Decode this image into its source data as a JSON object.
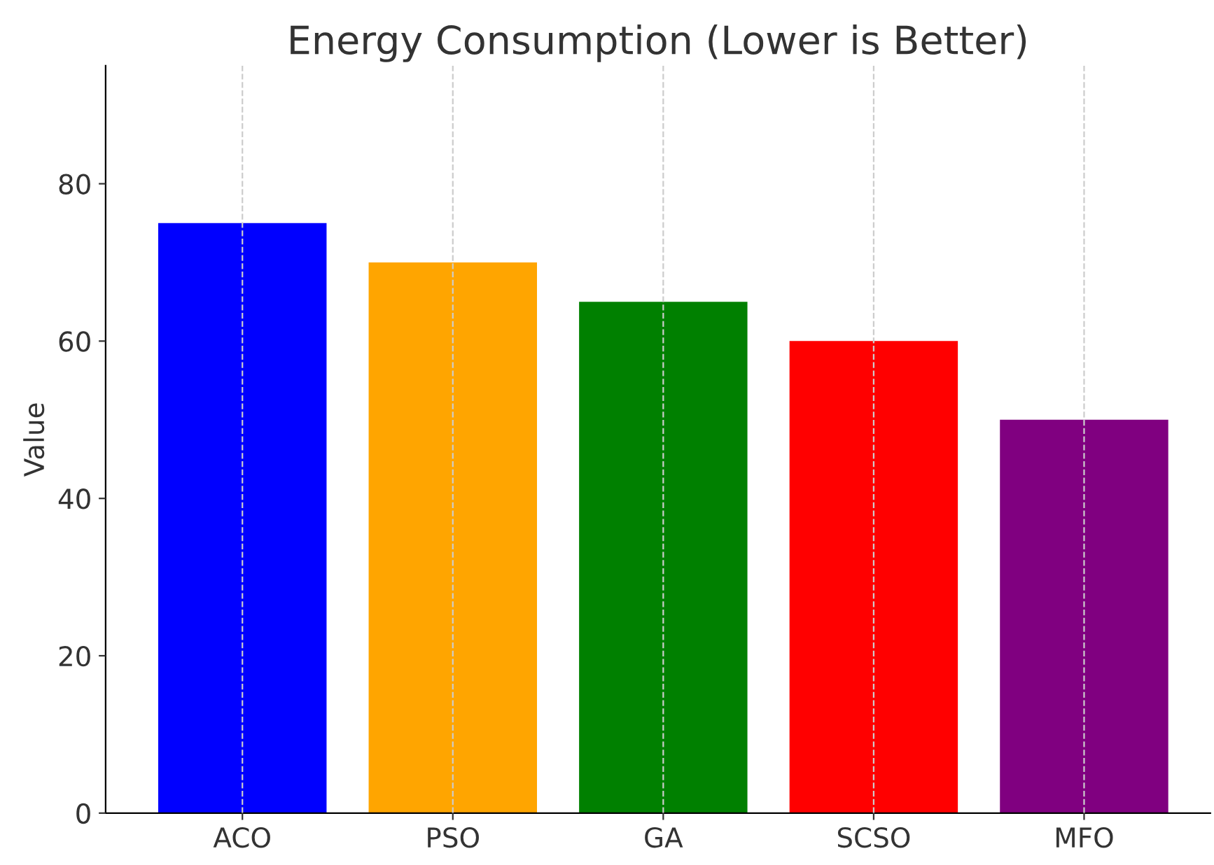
{
  "chart_data": {
    "type": "bar",
    "title": "Energy Consumption (Lower is Better)",
    "ylabel": "Value",
    "categories": [
      "ACO",
      "PSO",
      "GA",
      "SCSO",
      "MFO"
    ],
    "values": [
      75,
      70,
      65,
      60,
      50
    ],
    "colors": [
      "#0000ff",
      "#ffa500",
      "#008000",
      "#ff0000",
      "#800080"
    ],
    "ylim": [
      0,
      95
    ],
    "yticks": [
      0,
      20,
      40,
      60,
      80
    ],
    "grid": "x"
  }
}
